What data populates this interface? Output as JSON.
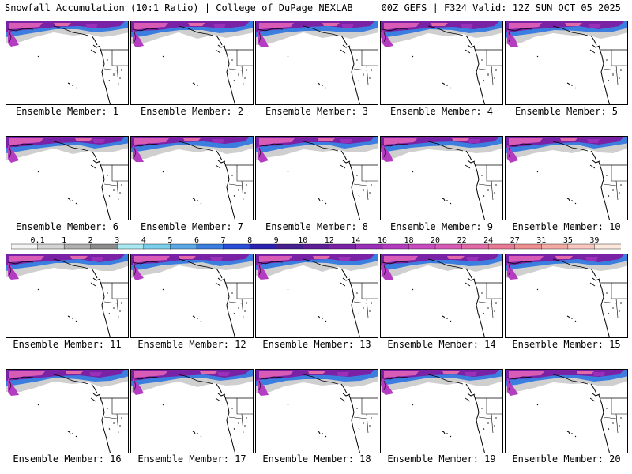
{
  "header": {
    "left": "Snowfall Accumulation (10:1 Ratio) | College of DuPage NEXLAB",
    "right": "00Z GEFS | F324 Valid: 12Z SUN OCT 05 2025"
  },
  "panels": [
    {
      "label": "Ensemble Member: 1"
    },
    {
      "label": "Ensemble Member: 2"
    },
    {
      "label": "Ensemble Member: 3"
    },
    {
      "label": "Ensemble Member: 4"
    },
    {
      "label": "Ensemble Member: 5"
    },
    {
      "label": "Ensemble Member: 6"
    },
    {
      "label": "Ensemble Member: 7"
    },
    {
      "label": "Ensemble Member: 8"
    },
    {
      "label": "Ensemble Member: 9"
    },
    {
      "label": "Ensemble Member: 10"
    },
    {
      "label": "Ensemble Member: 11"
    },
    {
      "label": "Ensemble Member: 12"
    },
    {
      "label": "Ensemble Member: 13"
    },
    {
      "label": "Ensemble Member: 14"
    },
    {
      "label": "Ensemble Member: 15"
    },
    {
      "label": "Ensemble Member: 16"
    },
    {
      "label": "Ensemble Member: 17"
    },
    {
      "label": "Ensemble Member: 18"
    },
    {
      "label": "Ensemble Member: 19"
    },
    {
      "label": "Ensemble Member: 20"
    }
  ],
  "colorbar": {
    "labels": [
      "0.1",
      "1",
      "2",
      "3",
      "4",
      "5",
      "6",
      "7",
      "8",
      "9",
      "10",
      "12",
      "14",
      "16",
      "18",
      "20",
      "22",
      "24",
      "27",
      "31",
      "35",
      "39"
    ],
    "colors": [
      "#f4f4f4",
      "#d4d4d4",
      "#b0b0b0",
      "#8c8c8c",
      "#a8e8f0",
      "#7ad0ea",
      "#5aa8e6",
      "#3c7ee0",
      "#2a4ed8",
      "#2a22b0",
      "#46208e",
      "#5e1e96",
      "#7a22a6",
      "#9a30b8",
      "#b43cc0",
      "#c84cc0",
      "#d85cb6",
      "#e26aa6",
      "#e87a96",
      "#ee9090",
      "#f4aaa4",
      "#f8c8c0",
      "#fce8dc"
    ]
  }
}
